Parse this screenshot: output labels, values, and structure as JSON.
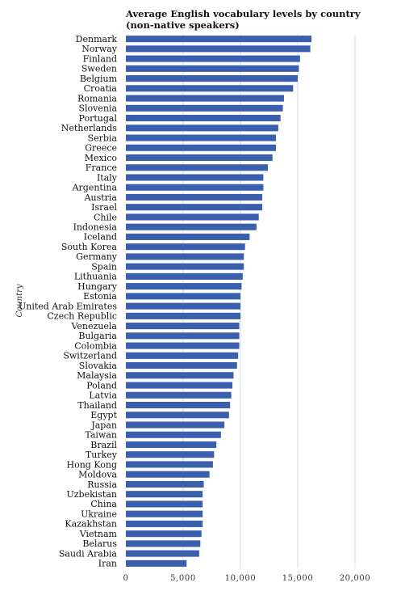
{
  "chart_data": {
    "type": "bar",
    "orientation": "horizontal",
    "title": "Average English vocabulary levels by country",
    "subtitle": "(non-native speakers)",
    "ylabel": "Country",
    "xlabel": "",
    "xlim": [
      0,
      20000
    ],
    "xticks": [
      0,
      5000,
      10000,
      15000,
      20000
    ],
    "xtick_labels": [
      "0",
      "5,000",
      "10,000",
      "15,000",
      "20,000"
    ],
    "grid": true,
    "bar_color": "#3a5fad",
    "categories": [
      "Denmark",
      "Norway",
      "Finland",
      "Sweden",
      "Belgium",
      "Croatia",
      "Romania",
      "Slovenia",
      "Portugal",
      "Netherlands",
      "Serbia",
      "Greece",
      "Mexico",
      "France",
      "Italy",
      "Argentina",
      "Austria",
      "Israel",
      "Chile",
      "Indonesia",
      "Iceland",
      "South Korea",
      "Germany",
      "Spain",
      "Lithuania",
      "Hungary",
      "Estonia",
      "United Arab Emirates",
      "Czech Republic",
      "Venezuela",
      "Bulgaria",
      "Colombia",
      "Switzerland",
      "Slovakia",
      "Malaysia",
      "Poland",
      "Latvia",
      "Thailand",
      "Egypt",
      "Japan",
      "Taiwan",
      "Brazil",
      "Turkey",
      "Hong Kong",
      "Moldova",
      "Russia",
      "Uzbekistan",
      "China",
      "Ukraine",
      "Kazakhstan",
      "Vietnam",
      "Belarus",
      "Saudi Arabia",
      "Iran"
    ],
    "values": [
      16200,
      16100,
      15200,
      15100,
      15000,
      14600,
      13800,
      13700,
      13500,
      13300,
      13100,
      13100,
      12800,
      12400,
      12000,
      12000,
      11900,
      11900,
      11600,
      11400,
      10800,
      10400,
      10300,
      10300,
      10200,
      10100,
      10000,
      10000,
      10000,
      9900,
      9900,
      9900,
      9800,
      9700,
      9400,
      9300,
      9200,
      9100,
      9000,
      8600,
      8300,
      7900,
      7700,
      7600,
      7300,
      6800,
      6700,
      6700,
      6700,
      6700,
      6600,
      6500,
      6400,
      5300
    ]
  }
}
